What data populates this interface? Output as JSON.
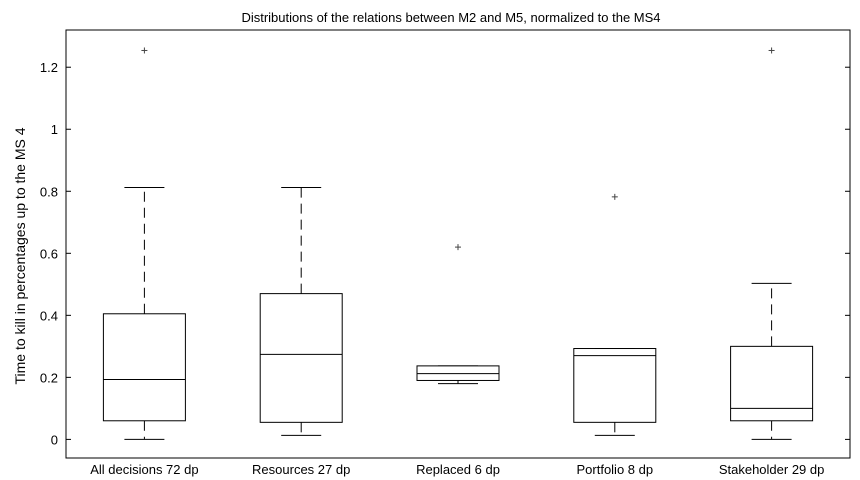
{
  "chart_data": {
    "type": "box",
    "title": "Distributions of the relations between M2 and M5, normalized to the MS4",
    "xlabel": "",
    "ylabel": "Time to kill in percentages up to the MS 4",
    "ylim": [
      -0.06,
      1.32
    ],
    "yticks": [
      0,
      0.2,
      0.4,
      0.6,
      0.8,
      1,
      1.2
    ],
    "grid": false,
    "categories": [
      "All decisions 72 dp",
      "Resources 27 dp",
      "Replaced 6 dp",
      "Portfolio 8 dp",
      "Stakeholder 29 dp"
    ],
    "boxes": [
      {
        "label": "All decisions 72 dp",
        "whisker_low": 0.0,
        "q1": 0.06,
        "median": 0.193,
        "q3": 0.405,
        "whisker_high": 0.812,
        "outliers": [
          1.254
        ]
      },
      {
        "label": "Resources 27 dp",
        "whisker_low": 0.013,
        "q1": 0.055,
        "median": 0.274,
        "q3": 0.47,
        "whisker_high": 0.812,
        "outliers": []
      },
      {
        "label": "Replaced 6 dp",
        "whisker_low": 0.18,
        "q1": 0.19,
        "median": 0.212,
        "q3": 0.237,
        "whisker_high": 0.237,
        "outliers": [
          0.62
        ]
      },
      {
        "label": "Portfolio 8 dp",
        "whisker_low": 0.013,
        "q1": 0.055,
        "median": 0.27,
        "q3": 0.293,
        "whisker_high": 0.293,
        "outliers": [
          0.782
        ]
      },
      {
        "label": "Stakeholder 29 dp",
        "whisker_low": 0.0,
        "q1": 0.06,
        "median": 0.1,
        "q3": 0.3,
        "whisker_high": 0.503,
        "outliers": [
          1.254
        ]
      }
    ]
  }
}
